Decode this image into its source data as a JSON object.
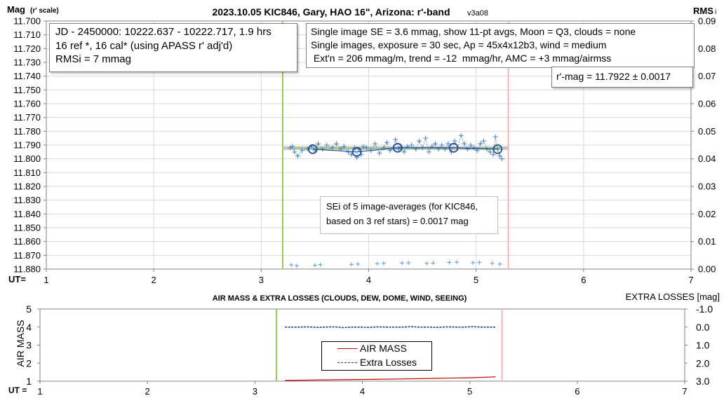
{
  "top_chart": {
    "title": "2023.10.05 KIC846, Gary, HAO 16\", Arizona: r'-band",
    "version": "v3a08",
    "y_label_main": "Mag",
    "y_label_sub": "(r' scale)",
    "y2_label": "RMS",
    "y2_label_sub": "i",
    "x_label": "UT=",
    "info_left": [
      "JD - 2450000: 10222.637 - 10222.717, 1.9 hrs",
      "16 ref *, 16 cal* (using APASS r' adj'd)",
      "RMSi = 7 mmag"
    ],
    "info_right": [
      "Single image SE = 3.6 mmag, show  11-pt avgs, Moon = Q3, clouds = none",
      "Single images, exposure = 30 sec, Ap = 45x4x12b3, wind = medium",
      " Ext'n = 206 mmag/m, trend = -12  mmag/hr, AMC = +3 mmag/airmss"
    ],
    "rmag_label": "r'-mag = 11.7922 ± 0.0017",
    "sei_text": [
      "SEi of 5 image-averages (for KIC846,",
      "based on 3 ref stars) = 0.0017 mag"
    ]
  },
  "bottom_chart": {
    "title": "AIR MASS & EXTRA LOSSES (CLOUDS, DEW, DOME, WIND, SEEING)",
    "y_label": "AIR MASS",
    "y2_label": "EXTRA LOSSES [mag]",
    "x_label": "UT =",
    "legend": [
      "AIR MASS",
      "Extra Losses"
    ]
  },
  "colors": {
    "green_line": "#92d050",
    "pink_line": "#f4b6bb",
    "gray_band": "#bfbfbf",
    "points": "#4f81bd",
    "circles": "#1f4e99",
    "airmass": "#c00000",
    "losses": "#1f3f99",
    "grid": "#d9d9d9"
  },
  "chart_data": [
    {
      "type": "scatter",
      "title": "2023.10.05 KIC846, Gary, HAO 16\", Arizona: r'-band",
      "xlabel": "UT=",
      "ylabel": "Mag (r' scale)",
      "y2label": "RMSi",
      "xlim": [
        1,
        7
      ],
      "ylim": [
        11.7,
        11.88
      ],
      "y_reversed": true,
      "y2lim": [
        0,
        0.09
      ],
      "x_ticks": [
        1,
        2,
        3,
        4,
        5,
        6,
        7
      ],
      "y_ticks": [
        "11.700",
        "11.710",
        "11.720",
        "11.730",
        "11.740",
        "11.750",
        "11.760",
        "11.770",
        "11.780",
        "11.790",
        "11.800",
        "11.810",
        "11.820",
        "11.830",
        "11.840",
        "11.850",
        "11.860",
        "11.870",
        "11.880"
      ],
      "y2_ticks": [
        "0.00",
        "0.01",
        "0.02",
        "0.03",
        "0.04",
        "0.05",
        "0.06",
        "0.07",
        "0.08",
        "0.09"
      ],
      "grid": true,
      "vertical_markers": {
        "start": 3.2,
        "end": 5.3
      },
      "mean_mag": 11.7922,
      "series": [
        {
          "marker": "plus-dashed",
          "x": [
            3.27,
            3.29,
            3.31,
            3.34,
            3.38,
            3.43,
            3.47,
            3.5,
            3.53,
            3.57,
            3.61,
            3.66,
            3.7,
            3.74,
            3.77,
            3.81,
            3.84,
            3.87,
            3.89,
            3.91,
            3.93,
            3.95,
            3.98,
            4.02,
            4.06,
            4.1,
            4.14,
            4.17,
            4.2,
            4.23,
            4.25,
            4.28,
            4.3,
            4.33,
            4.36,
            4.4,
            4.44,
            4.47,
            4.5,
            4.53,
            4.56,
            4.59,
            4.62,
            4.65,
            4.68,
            4.71,
            4.74,
            4.77,
            4.8,
            4.83,
            4.86,
            4.89,
            4.92,
            4.95,
            4.98,
            5.01,
            5.04,
            5.07,
            5.1,
            5.13,
            5.16,
            5.18,
            5.2,
            5.22,
            5.24
          ],
          "y": [
            11.792,
            11.791,
            11.795,
            11.798,
            11.794,
            11.793,
            11.791,
            11.794,
            11.789,
            11.793,
            11.79,
            11.792,
            11.789,
            11.793,
            11.791,
            11.795,
            11.797,
            11.792,
            11.799,
            11.793,
            11.797,
            11.791,
            11.792,
            11.794,
            11.789,
            11.796,
            11.792,
            11.788,
            11.794,
            11.792,
            11.786,
            11.793,
            11.791,
            11.795,
            11.791,
            11.79,
            11.793,
            11.787,
            11.792,
            11.785,
            11.795,
            11.791,
            11.789,
            11.793,
            11.79,
            11.793,
            11.789,
            11.795,
            11.787,
            11.792,
            11.783,
            11.789,
            11.793,
            11.79,
            11.792,
            11.794,
            11.789,
            11.787,
            11.793,
            11.795,
            11.797,
            11.784,
            11.793,
            11.798,
            11.8
          ]
        },
        {
          "name": "5 image-averages",
          "marker": "circle",
          "x": [
            3.48,
            3.89,
            4.27,
            4.79,
            5.2
          ],
          "y": [
            11.793,
            11.795,
            11.792,
            11.792,
            11.793
          ]
        },
        {
          "name": "RMSi",
          "marker": "plus",
          "axis": "y2",
          "x": [
            3.28,
            3.33,
            3.5,
            3.55,
            3.84,
            3.9,
            4.08,
            4.14,
            4.31,
            4.37,
            4.54,
            4.6,
            4.75,
            4.82,
            4.97,
            5.03,
            5.15,
            5.22
          ],
          "y": [
            0.0015,
            0.0012,
            0.0014,
            0.0016,
            0.0017,
            0.0018,
            0.002,
            0.0021,
            0.0022,
            0.0023,
            0.0021,
            0.0022,
            0.0024,
            0.0025,
            0.0023,
            0.0024,
            0.0021,
            0.0018
          ]
        }
      ]
    },
    {
      "type": "line",
      "title": "AIR MASS & EXTRA LOSSES (CLOUDS, DEW, DOME, WIND, SEEING)",
      "xlabel": "UT =",
      "ylabel": "AIR MASS",
      "y2label": "EXTRA LOSSES [mag]",
      "xlim": [
        1,
        7
      ],
      "ylim": [
        1,
        5
      ],
      "y2lim": [
        -1.0,
        3.0
      ],
      "y2_reversed": true,
      "x_ticks": [
        1,
        2,
        3,
        4,
        5,
        6,
        7
      ],
      "y_ticks": [
        "1",
        "2",
        "3",
        "4",
        "5"
      ],
      "y2_ticks": [
        "-1.0",
        "0.0",
        "1.0",
        "2.0",
        "3.0"
      ],
      "legend_position": "center",
      "vertical_markers": {
        "start": 3.2,
        "end": 5.3
      },
      "series": [
        {
          "name": "AIR MASS",
          "axis": "y",
          "x": [
            3.28,
            3.5,
            3.8,
            4.1,
            4.4,
            4.7,
            5.0,
            5.24
          ],
          "y": [
            1.04,
            1.06,
            1.08,
            1.1,
            1.13,
            1.16,
            1.19,
            1.24
          ]
        },
        {
          "name": "Extra Losses",
          "axis": "y2",
          "x": [
            3.28,
            3.35,
            3.42,
            3.5,
            3.58,
            3.66,
            3.74,
            3.82,
            3.9,
            3.98,
            4.06,
            4.14,
            4.22,
            4.3,
            4.38,
            4.46,
            4.54,
            4.62,
            4.7,
            4.78,
            4.86,
            4.94,
            5.02,
            5.1,
            5.18,
            5.24
          ],
          "y": [
            0.0,
            0.01,
            0.0,
            -0.01,
            0.02,
            0.0,
            -0.01,
            0.03,
            0.01,
            0.0,
            0.02,
            -0.01,
            0.0,
            0.01,
            0.0,
            -0.02,
            0.01,
            0.0,
            0.02,
            -0.01,
            0.0,
            0.01,
            -0.02,
            0.0,
            0.01,
            0.0
          ]
        }
      ]
    }
  ]
}
